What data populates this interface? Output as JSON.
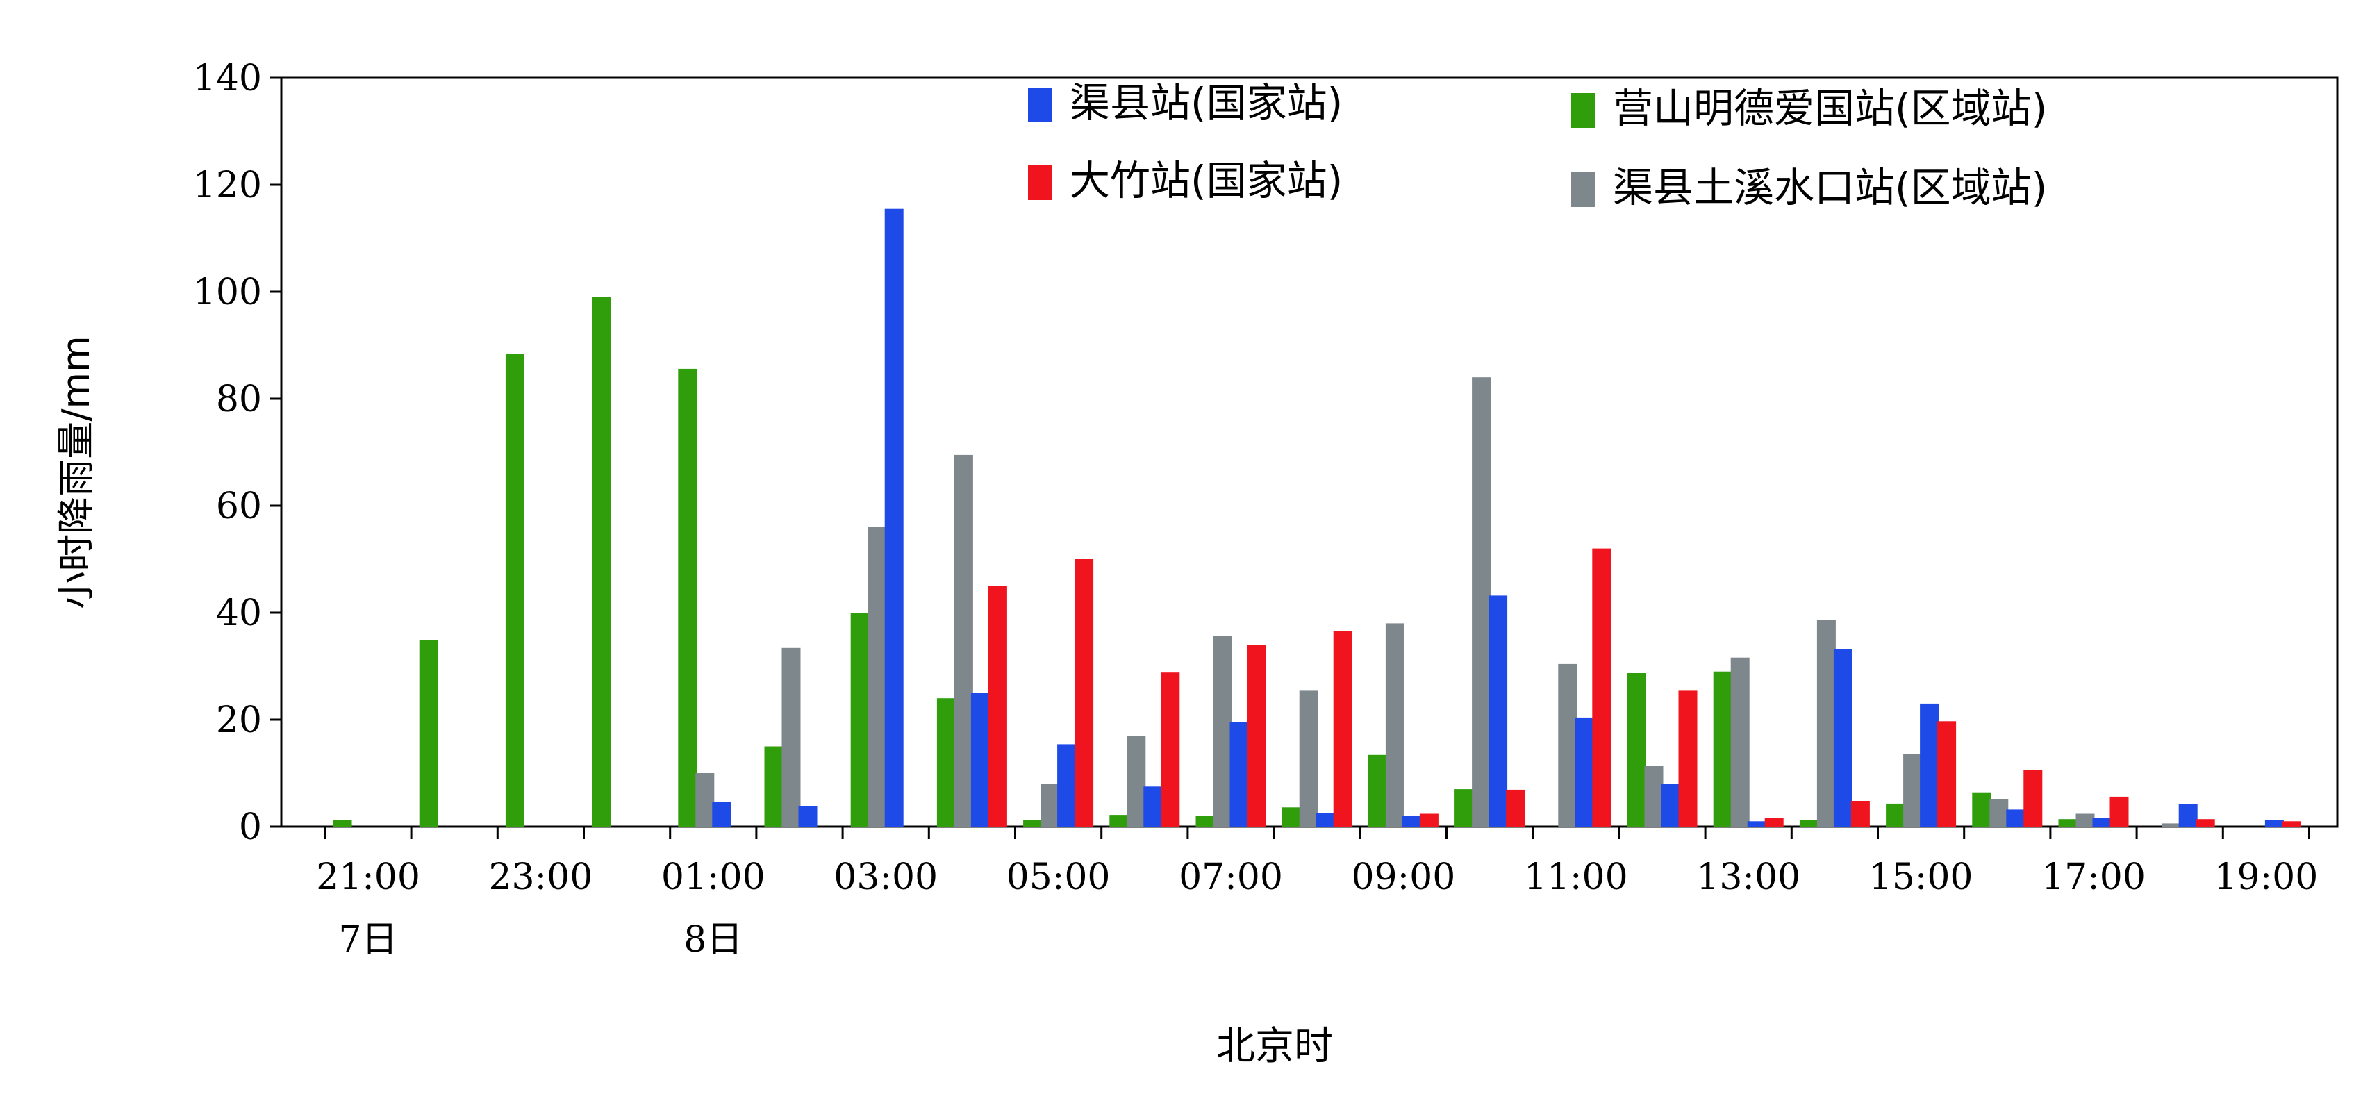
{
  "chart_data": {
    "type": "bar",
    "title": "",
    "ylabel": "小时降雨量/mm",
    "xlabel": "北京时",
    "ylim": [
      0,
      140
    ],
    "yticks": [
      0,
      20,
      40,
      60,
      80,
      100,
      120,
      140
    ],
    "categories": [
      "21:00",
      "22:00",
      "23:00",
      "00:00",
      "01:00",
      "02:00",
      "03:00",
      "04:00",
      "05:00",
      "06:00",
      "07:00",
      "08:00",
      "09:00",
      "10:00",
      "11:00",
      "12:00",
      "13:00",
      "14:00",
      "15:00",
      "16:00",
      "17:00",
      "18:00",
      "19:00"
    ],
    "xtick_labels": [
      "21:00",
      "23:00",
      "01:00",
      "03:00",
      "05:00",
      "07:00",
      "09:00",
      "11:00",
      "13:00",
      "15:00",
      "17:00",
      "19:00"
    ],
    "date_labels": [
      {
        "text": "7日",
        "under": "21:00"
      },
      {
        "text": "8日",
        "under": "01:00"
      }
    ],
    "legend_position": "top-right",
    "series": [
      {
        "name": "营山明德爱国站(区域站)",
        "color": "#2f9e0a",
        "values": [
          1.2,
          34.8,
          88.4,
          99,
          85.6,
          15,
          40,
          24,
          1.2,
          2.2,
          2,
          3.6,
          13.4,
          7,
          0,
          28.7,
          29,
          1.2,
          4.3,
          6.4,
          1.4,
          0,
          0
        ]
      },
      {
        "name": "渠县土溪水口站(区域站)",
        "color": "#7d878c",
        "values": [
          0,
          0,
          0,
          0,
          10,
          33.4,
          56,
          69.5,
          8,
          17,
          35.7,
          25.4,
          38,
          84,
          30.4,
          11.3,
          31.6,
          38.6,
          13.6,
          5.2,
          2.4,
          0.6,
          0
        ]
      },
      {
        "name": "渠县站(国家站)",
        "color": "#1e4be8",
        "values": [
          0,
          0,
          0,
          0,
          4.6,
          3.8,
          115.5,
          25,
          15.4,
          7.5,
          19.6,
          2.6,
          2,
          43.2,
          20.4,
          8,
          1,
          33.2,
          23,
          3.2,
          1.6,
          4.2,
          1.2
        ]
      },
      {
        "name": "大竹站(国家站)",
        "color": "#f0141e",
        "values": [
          0,
          0,
          0,
          0,
          0,
          0,
          0,
          45,
          50,
          28.8,
          34,
          36.5,
          2.4,
          6.9,
          52,
          25.4,
          1.6,
          4.8,
          19.7,
          10.6,
          5.6,
          1.4,
          1
        ]
      }
    ],
    "legend_order": [
      {
        "series": "渠县站(国家站)",
        "color": "#1e4be8"
      },
      {
        "series": "营山明德爱国站(区域站)",
        "color": "#2f9e0a"
      },
      {
        "series": "大竹站(国家站)",
        "color": "#f0141e"
      },
      {
        "series": "渠县土溪水口站(区域站)",
        "color": "#7d878c"
      }
    ]
  }
}
